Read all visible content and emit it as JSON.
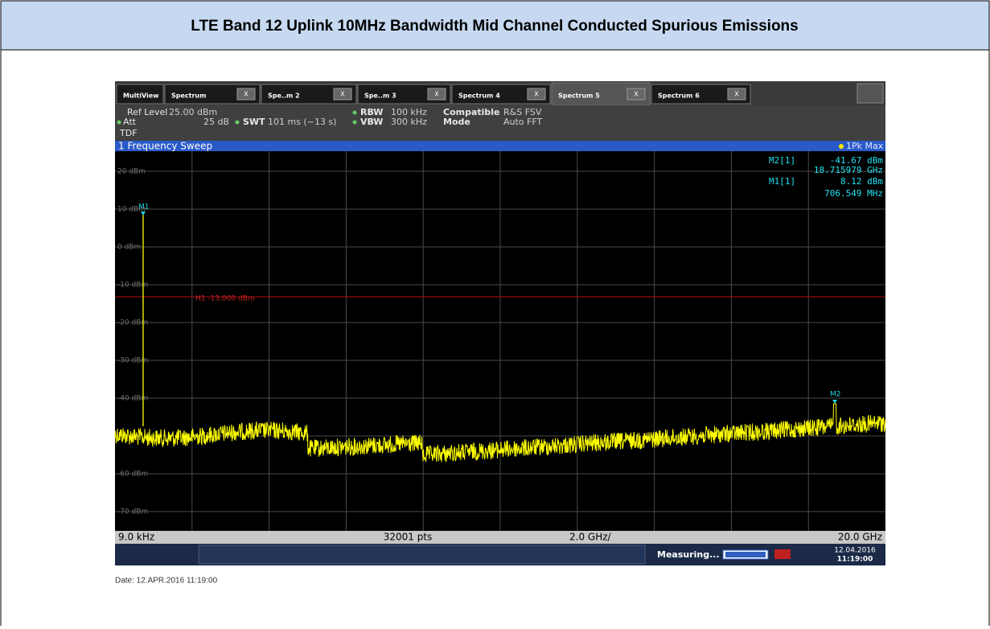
{
  "title": "LTE Band 12 Uplink 10MHz Bandwidth Mid Channel Conducted Spurious Emissions",
  "screen": {
    "tabs": [
      "MultiView",
      "Spectrum",
      "Spe..m 2",
      "Spe..m 3",
      "Spectrum 4",
      "Spectrum 5",
      "Spectrum 6"
    ],
    "close_label": "X",
    "settings": {
      "ref_level_label": "Ref Level",
      "ref_level": "25.00 dBm",
      "att_label": "Att",
      "att": "25 dB",
      "swt_label": "SWT",
      "swt": "101 ms (~13 s)",
      "rbw_label": "RBW",
      "rbw": "100 kHz",
      "vbw_label": "VBW",
      "vbw": "300 kHz",
      "compatible_label": "Compatible",
      "compatible": "R&S FSV",
      "mode_label": "Mode",
      "mode": "Auto FFT",
      "tdf": "TDF"
    },
    "window_title": "1 Frequency Sweep",
    "trace_label": "1Pk Max",
    "markers": [
      {
        "name": "M2[1]",
        "level": "-41.67 dBm",
        "freq": "18.715979 GHz"
      },
      {
        "name": "M1[1]",
        "level": "8.12 dBm",
        "freq": "706.549 MHz"
      }
    ],
    "marker_tags": [
      "M1",
      "M2"
    ],
    "y_labels": [
      "20 dBm",
      "10 dBm",
      "0 dBm",
      "-10 dBm",
      "-20 dBm",
      "-30 dBm",
      "-40 dBm",
      "-60 dBm",
      "-70 dBm"
    ],
    "limit_line": "H1 -13.000 dBm",
    "footer": {
      "start": "9.0 kHz",
      "points": "32001 pts",
      "span_div": "2.0 GHz/",
      "stop": "20.0 GHz"
    },
    "status": {
      "state": "Measuring...",
      "date": "12.04.2016",
      "time": "11:19:00"
    }
  },
  "date_line": "Date: 12.APR.2016  11:19:00"
}
